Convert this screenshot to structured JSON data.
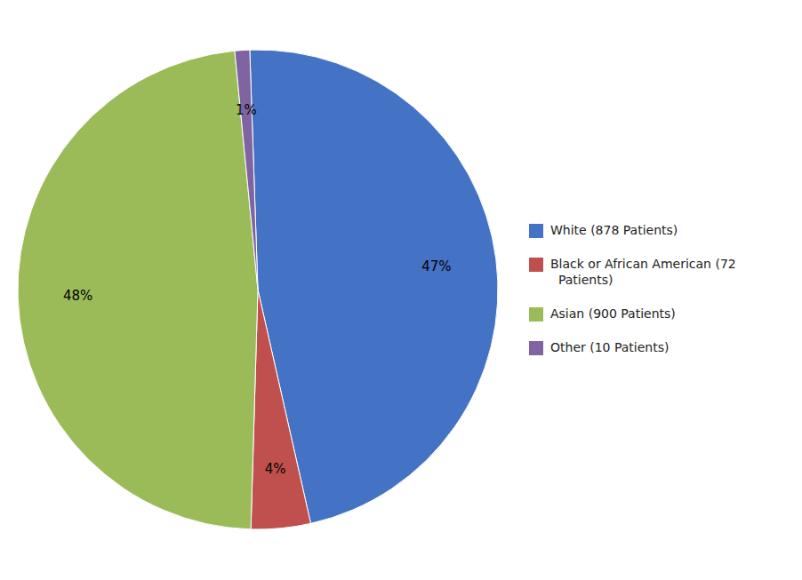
{
  "chart_data": {
    "type": "pie",
    "categories": [
      "White (878 Patients)",
      "Black or African American (72\n  Patients)",
      "Asian (900 Patients)",
      "Other (10 Patients)"
    ],
    "values": [
      47,
      4,
      48,
      1
    ],
    "value_labels": [
      "47%",
      "4%",
      "48%",
      "1%"
    ],
    "colors": [
      "#4472C4",
      "#C0504D",
      "#9BBB59",
      "#8064A2"
    ],
    "data_labels": true,
    "legend": "right"
  }
}
